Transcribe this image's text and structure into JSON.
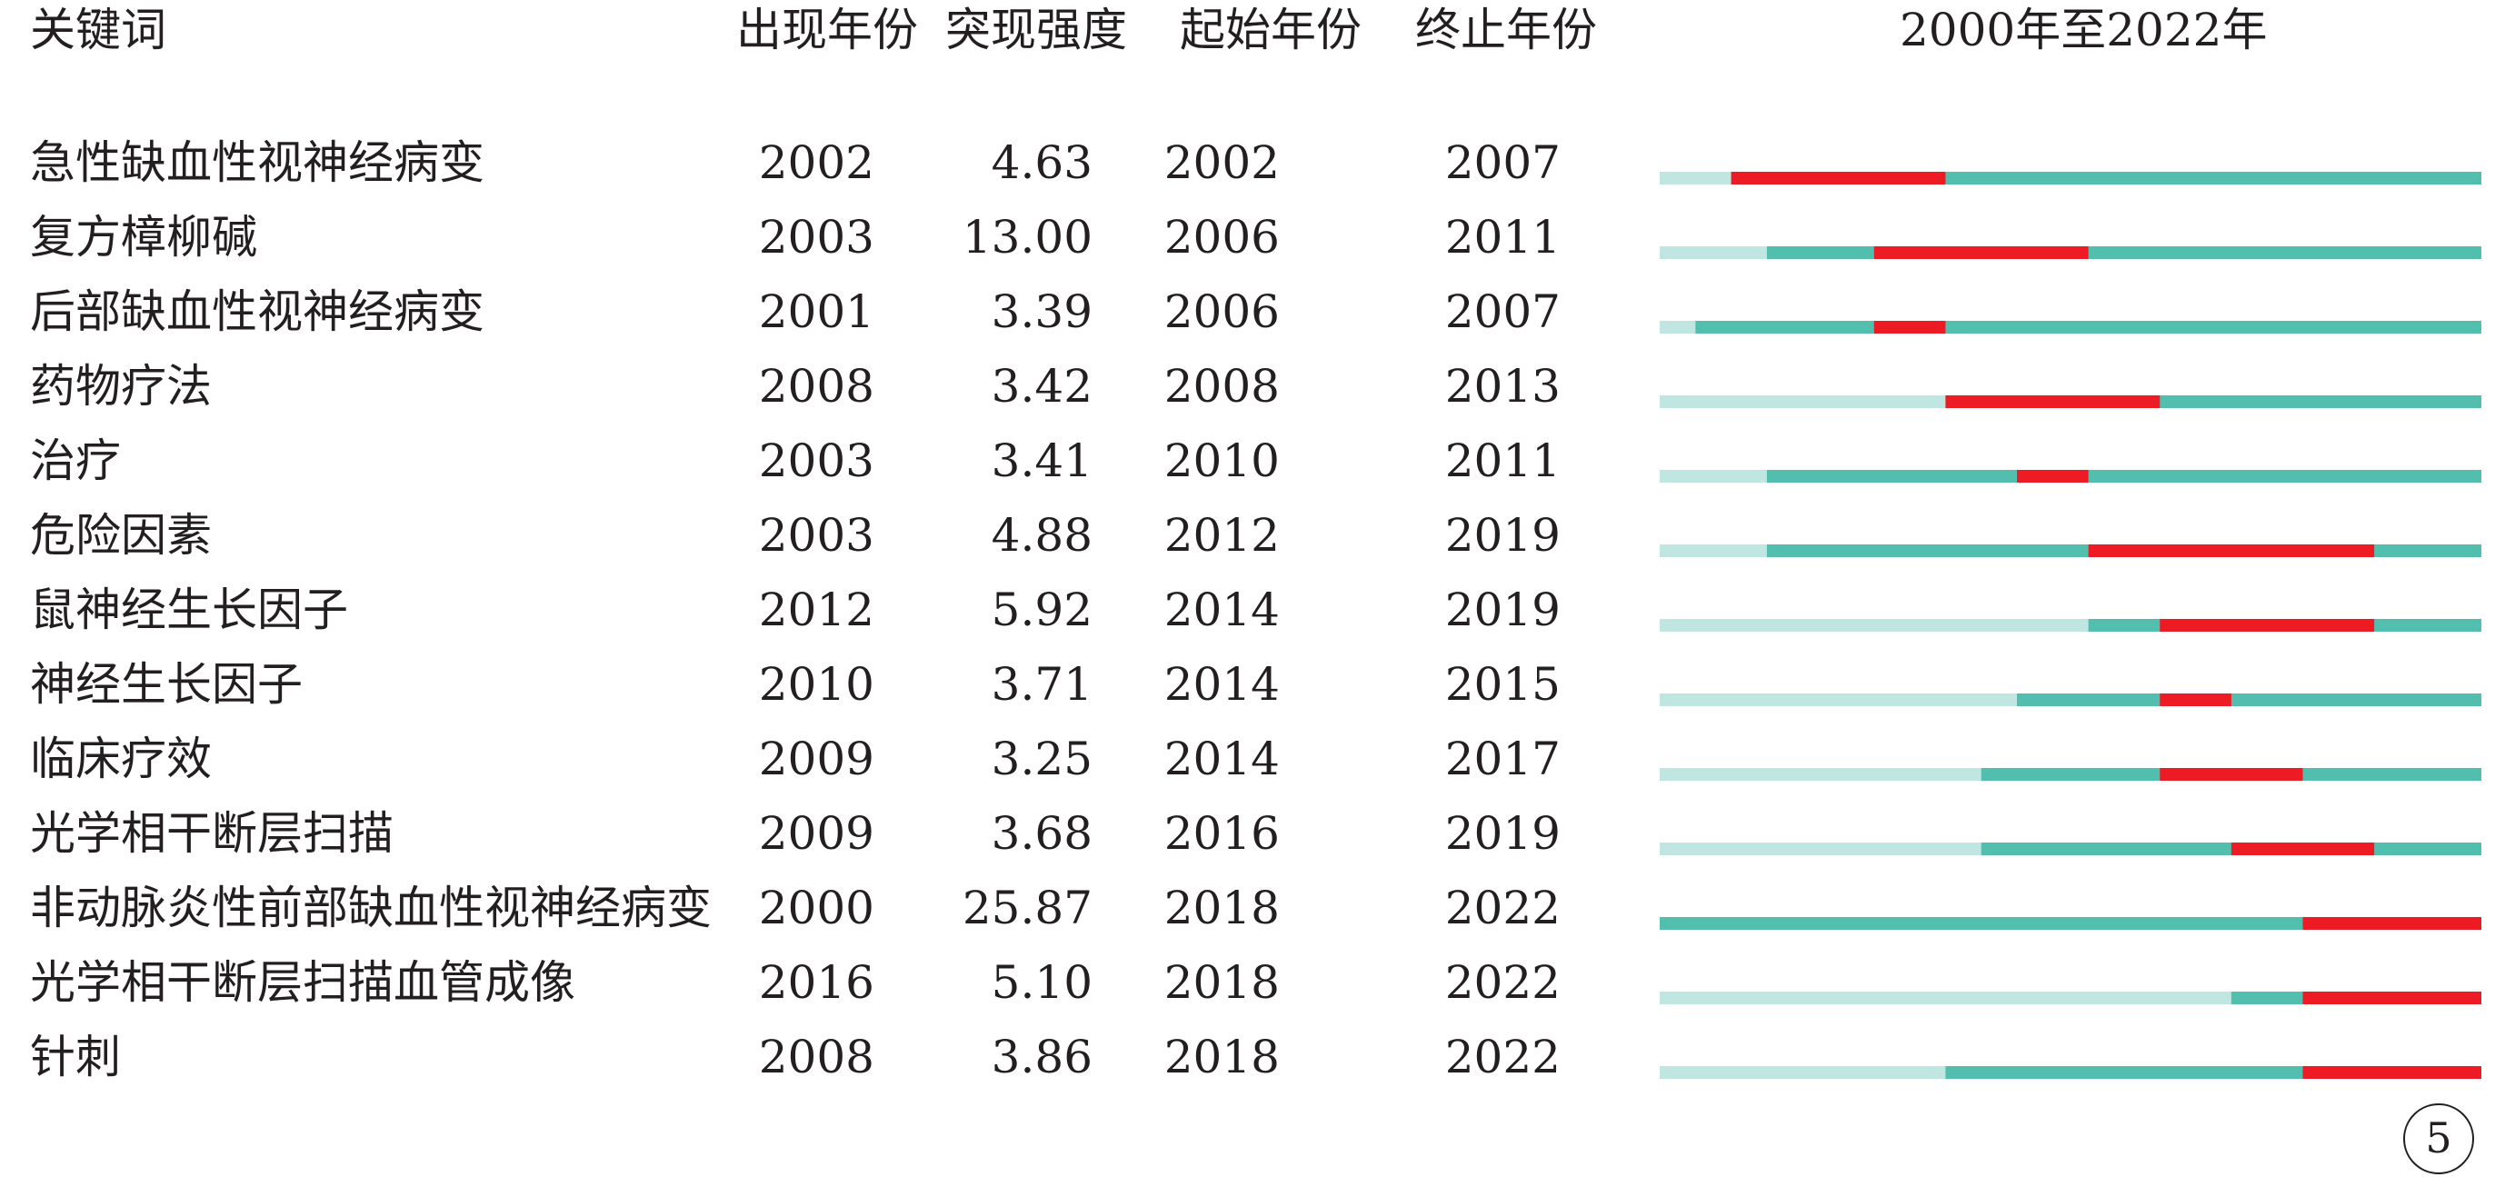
{
  "headers": {
    "keyword": "关键词",
    "first_year": "出现年份",
    "strength": "突现强度",
    "begin": "起始年份",
    "end": "终止年份",
    "timeline": "2000年至2022年"
  },
  "page_number": "5",
  "colors": {
    "light_track": "#bfe6e0",
    "active_track": "#52bfae",
    "burst": "#ed1c24",
    "text": "#231f20"
  },
  "chart_data": {
    "type": "bar",
    "subtype": "citation-burst-timeline",
    "title": "2000年至2022年",
    "xlim": [
      2000,
      2022
    ],
    "rows": [
      {
        "keyword": "急性缺血性视神经病变",
        "first_year": "2002",
        "strength": "4.63",
        "begin": "2002",
        "end": "2007"
      },
      {
        "keyword": "复方樟柳碱",
        "first_year": "2003",
        "strength": "13.00",
        "begin": "2006",
        "end": "2011"
      },
      {
        "keyword": "后部缺血性视神经病变",
        "first_year": "2001",
        "strength": "3.39",
        "begin": "2006",
        "end": "2007"
      },
      {
        "keyword": "药物疗法",
        "first_year": "2008",
        "strength": "3.42",
        "begin": "2008",
        "end": "2013"
      },
      {
        "keyword": "治疗",
        "first_year": "2003",
        "strength": "3.41",
        "begin": "2010",
        "end": "2011"
      },
      {
        "keyword": "危险因素",
        "first_year": "2003",
        "strength": "4.88",
        "begin": "2012",
        "end": "2019"
      },
      {
        "keyword": "鼠神经生长因子",
        "first_year": "2012",
        "strength": "5.92",
        "begin": "2014",
        "end": "2019"
      },
      {
        "keyword": "神经生长因子",
        "first_year": "2010",
        "strength": "3.71",
        "begin": "2014",
        "end": "2015"
      },
      {
        "keyword": "临床疗效",
        "first_year": "2009",
        "strength": "3.25",
        "begin": "2014",
        "end": "2017"
      },
      {
        "keyword": "光学相干断层扫描",
        "first_year": "2009",
        "strength": "3.68",
        "begin": "2016",
        "end": "2019"
      },
      {
        "keyword": "非动脉炎性前部缺血性视神经病变",
        "first_year": "2000",
        "strength": "25.87",
        "begin": "2018",
        "end": "2022"
      },
      {
        "keyword": "光学相干断层扫描血管成像",
        "first_year": "2016",
        "strength": "5.10",
        "begin": "2018",
        "end": "2022"
      },
      {
        "keyword": "针刺",
        "first_year": "2008",
        "strength": "3.86",
        "begin": "2018",
        "end": "2022"
      }
    ]
  }
}
